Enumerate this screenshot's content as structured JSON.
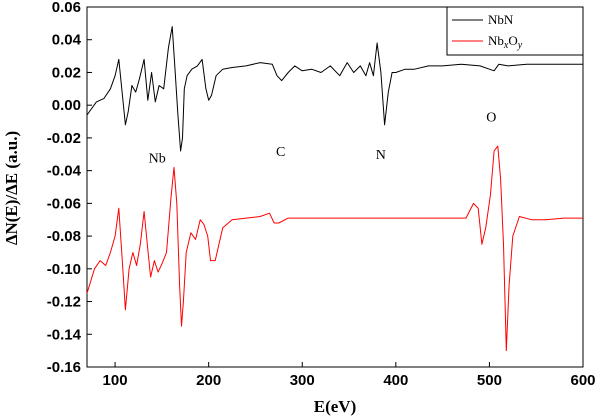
{
  "chart_data": {
    "type": "line",
    "xlabel": "E(eV)",
    "ylabel": "ΔN(E)/ΔE (a.u.)",
    "xlim": [
      70,
      600
    ],
    "ylim": [
      -0.16,
      0.06
    ],
    "x_ticks": [
      100,
      200,
      300,
      400,
      500,
      600
    ],
    "y_ticks": [
      -0.16,
      -0.14,
      -0.12,
      -0.1,
      -0.08,
      -0.06,
      -0.04,
      -0.02,
      0.0,
      0.02,
      0.04,
      0.06
    ],
    "x_tick_labels": [
      "100",
      "200",
      "300",
      "400",
      "500",
      "600"
    ],
    "y_tick_labels": [
      "-0.16",
      "-0.14",
      "-0.12",
      "-0.10",
      "-0.08",
      "-0.06",
      "-0.04",
      "-0.02",
      "0.00",
      "0.02",
      "0.04",
      "0.06"
    ],
    "grid": false,
    "legend_position": "top-right",
    "series": [
      {
        "name": "NbN",
        "color": "#000000",
        "x": [
          70,
          80,
          88,
          95,
          100,
          104,
          108,
          111,
          114,
          118,
          122,
          126,
          131,
          135,
          139,
          143,
          147,
          152,
          157,
          161,
          164,
          167,
          170,
          172,
          174,
          177,
          182,
          188,
          193,
          197,
          200,
          203,
          208,
          215,
          225,
          240,
          255,
          268,
          273,
          278,
          285,
          292,
          300,
          310,
          320,
          330,
          340,
          348,
          355,
          362,
          368,
          372,
          376,
          380,
          384,
          388,
          392,
          396,
          400,
          410,
          420,
          435,
          450,
          470,
          490,
          500,
          505,
          510,
          520,
          540,
          560,
          580,
          600
        ],
        "y": [
          -0.006,
          0.002,
          0.004,
          0.01,
          0.018,
          0.028,
          0.005,
          -0.012,
          -0.004,
          0.012,
          0.008,
          0.016,
          0.028,
          0.003,
          0.02,
          0.002,
          0.012,
          0.01,
          0.035,
          0.048,
          0.022,
          -0.005,
          -0.028,
          -0.02,
          0.01,
          0.018,
          0.022,
          0.024,
          0.028,
          0.01,
          0.003,
          0.006,
          0.018,
          0.022,
          0.023,
          0.024,
          0.026,
          0.025,
          0.018,
          0.015,
          0.02,
          0.024,
          0.021,
          0.022,
          0.02,
          0.024,
          0.018,
          0.026,
          0.02,
          0.024,
          0.018,
          0.026,
          0.018,
          0.038,
          0.02,
          -0.012,
          0.008,
          0.02,
          0.02,
          0.022,
          0.022,
          0.024,
          0.024,
          0.025,
          0.024,
          0.022,
          0.021,
          0.025,
          0.024,
          0.025,
          0.025,
          0.025,
          0.025
        ]
      },
      {
        "name": "NbxOy",
        "color": "#ff0000",
        "x": [
          70,
          78,
          84,
          90,
          95,
          100,
          104,
          108,
          111,
          115,
          119,
          123,
          127,
          131,
          135,
          138,
          142,
          146,
          150,
          155,
          160,
          163,
          166,
          169,
          171,
          173,
          176,
          181,
          186,
          191,
          195,
          199,
          202,
          207,
          215,
          225,
          240,
          255,
          265,
          270,
          275,
          285,
          300,
          320,
          340,
          360,
          380,
          400,
          420,
          440,
          460,
          475,
          483,
          488,
          492,
          496,
          501,
          505,
          509,
          512,
          515,
          518,
          521,
          525,
          532,
          545,
          560,
          580,
          600
        ],
        "y": [
          -0.115,
          -0.1,
          -0.095,
          -0.098,
          -0.09,
          -0.08,
          -0.063,
          -0.098,
          -0.125,
          -0.1,
          -0.09,
          -0.098,
          -0.085,
          -0.065,
          -0.088,
          -0.105,
          -0.095,
          -0.102,
          -0.097,
          -0.09,
          -0.055,
          -0.038,
          -0.06,
          -0.11,
          -0.135,
          -0.12,
          -0.09,
          -0.078,
          -0.082,
          -0.07,
          -0.073,
          -0.08,
          -0.095,
          -0.095,
          -0.075,
          -0.07,
          -0.069,
          -0.068,
          -0.066,
          -0.072,
          -0.072,
          -0.069,
          -0.069,
          -0.069,
          -0.069,
          -0.069,
          -0.069,
          -0.069,
          -0.069,
          -0.069,
          -0.069,
          -0.069,
          -0.06,
          -0.063,
          -0.085,
          -0.075,
          -0.055,
          -0.028,
          -0.025,
          -0.045,
          -0.085,
          -0.15,
          -0.11,
          -0.08,
          -0.068,
          -0.07,
          -0.07,
          -0.069,
          -0.069
        ]
      }
    ],
    "annotations": [
      {
        "text": "Nb",
        "x": 145,
        "y": -0.035
      },
      {
        "text": "C",
        "x": 277,
        "y": -0.031
      },
      {
        "text": "N",
        "x": 384,
        "y": -0.033
      },
      {
        "text": "O",
        "x": 502,
        "y": -0.01
      }
    ],
    "legend": [
      {
        "label": "NbN",
        "color": "#000000"
      },
      {
        "label_main": "Nb",
        "sub1": "x",
        "label_mid": "O",
        "sub2": "y",
        "color": "#ff0000"
      }
    ]
  }
}
